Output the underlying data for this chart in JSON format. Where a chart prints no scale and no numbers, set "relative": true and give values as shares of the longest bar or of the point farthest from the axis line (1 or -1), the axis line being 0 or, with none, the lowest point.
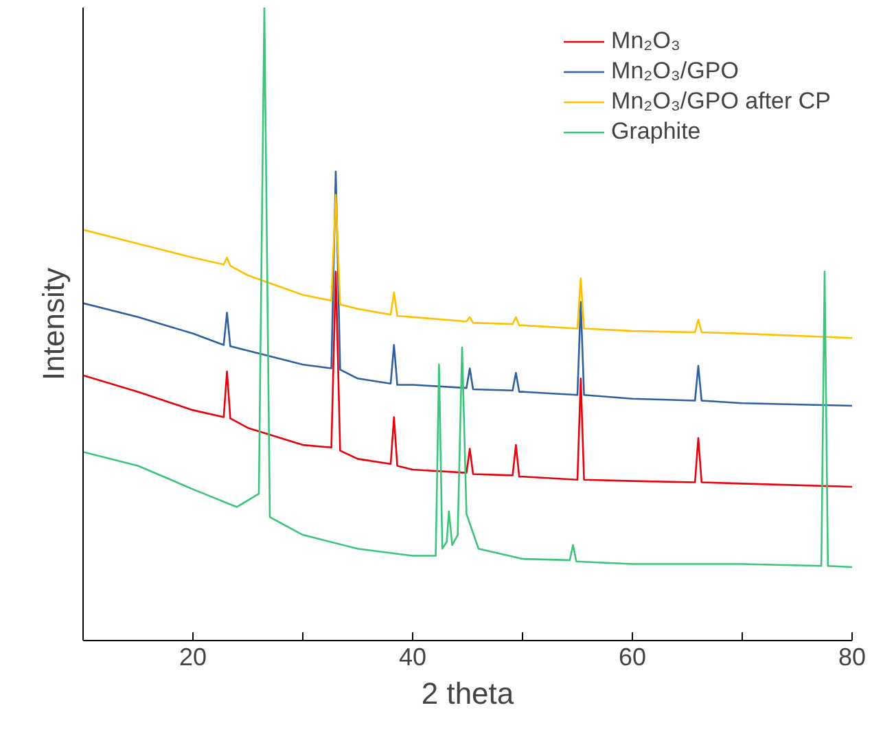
{
  "chart_data": {
    "type": "line",
    "relative": true,
    "xlabel": "2 theta",
    "ylabel": "Intensity",
    "xlim": [
      10,
      80
    ],
    "xticks": [
      {
        "value": 10,
        "label": null
      },
      20,
      {
        "value": 30,
        "label": null
      },
      40,
      {
        "value": 50,
        "label": null
      },
      60,
      {
        "value": 70,
        "label": null
      },
      80
    ],
    "legend": "top right",
    "grid": false,
    "marker": "none",
    "line_style": "solid",
    "series": [
      {
        "name": "Mn₂O₃",
        "color": "#e8000b",
        "x": [
          10,
          15,
          20,
          22.8,
          23.1,
          23.4,
          25,
          30,
          32.6,
          33,
          33.4,
          35,
          38,
          38.3,
          38.6,
          40,
          44.9,
          45.2,
          45.5,
          49.1,
          49.4,
          49.7,
          50,
          55,
          55.3,
          55.6,
          60,
          65.7,
          66,
          66.3,
          70,
          80
        ],
        "values": [
          0.419,
          0.393,
          0.364,
          0.353,
          0.425,
          0.351,
          0.336,
          0.309,
          0.305,
          0.583,
          0.3,
          0.287,
          0.279,
          0.353,
          0.276,
          0.27,
          0.265,
          0.303,
          0.263,
          0.261,
          0.309,
          0.259,
          0.259,
          0.254,
          0.414,
          0.254,
          0.252,
          0.25,
          0.32,
          0.25,
          0.248,
          0.243
        ]
      },
      {
        "name": "Mn₂O₃/GPO",
        "color": "#2e5fa1",
        "x": [
          10,
          15,
          20,
          22.8,
          23.1,
          23.4,
          25,
          30,
          32.6,
          33,
          33.4,
          35,
          38,
          38.3,
          38.6,
          40,
          44.9,
          45.2,
          45.5,
          49.1,
          49.4,
          49.7,
          50,
          55,
          55.3,
          55.6,
          60,
          65.7,
          66,
          66.3,
          70,
          80
        ],
        "values": [
          0.533,
          0.511,
          0.485,
          0.467,
          0.518,
          0.465,
          0.458,
          0.436,
          0.43,
          0.741,
          0.428,
          0.414,
          0.406,
          0.467,
          0.404,
          0.404,
          0.399,
          0.43,
          0.397,
          0.395,
          0.423,
          0.393,
          0.393,
          0.388,
          0.535,
          0.388,
          0.382,
          0.379,
          0.434,
          0.379,
          0.375,
          0.371
        ]
      },
      {
        "name": "Mn₂O₃/GPO after CP",
        "color": "#ffc000",
        "x": [
          10,
          15,
          20,
          22.8,
          23.1,
          23.4,
          25,
          30,
          32.6,
          33,
          33.4,
          35,
          38,
          38.3,
          38.6,
          40,
          44.9,
          45.2,
          45.5,
          49.1,
          49.4,
          49.7,
          50,
          55,
          55.3,
          55.6,
          60,
          65.7,
          66,
          66.3,
          70,
          80
        ],
        "values": [
          0.649,
          0.627,
          0.605,
          0.594,
          0.605,
          0.592,
          0.577,
          0.546,
          0.537,
          0.704,
          0.531,
          0.524,
          0.515,
          0.55,
          0.513,
          0.511,
          0.504,
          0.511,
          0.502,
          0.5,
          0.511,
          0.498,
          0.498,
          0.493,
          0.572,
          0.493,
          0.489,
          0.487,
          0.507,
          0.487,
          0.485,
          0.478
        ]
      },
      {
        "name": "Graphite",
        "color": "#3cc47a",
        "x": [
          10,
          15,
          18,
          20,
          24,
          26,
          26.5,
          27,
          30,
          35,
          40,
          42.1,
          42.4,
          42.7,
          43.1,
          43.3,
          43.6,
          44.1,
          44.5,
          44.9,
          46,
          50,
          54.3,
          54.6,
          54.9,
          60,
          70,
          77.2,
          77.5,
          77.8,
          80
        ],
        "values": [
          0.298,
          0.276,
          0.254,
          0.239,
          0.211,
          0.232,
          1,
          0.195,
          0.167,
          0.145,
          0.134,
          0.134,
          0.436,
          0.145,
          0.156,
          0.204,
          0.151,
          0.167,
          0.463,
          0.2,
          0.145,
          0.129,
          0.127,
          0.151,
          0.125,
          0.121,
          0.121,
          0.118,
          0.583,
          0.118,
          0.116
        ]
      }
    ]
  }
}
